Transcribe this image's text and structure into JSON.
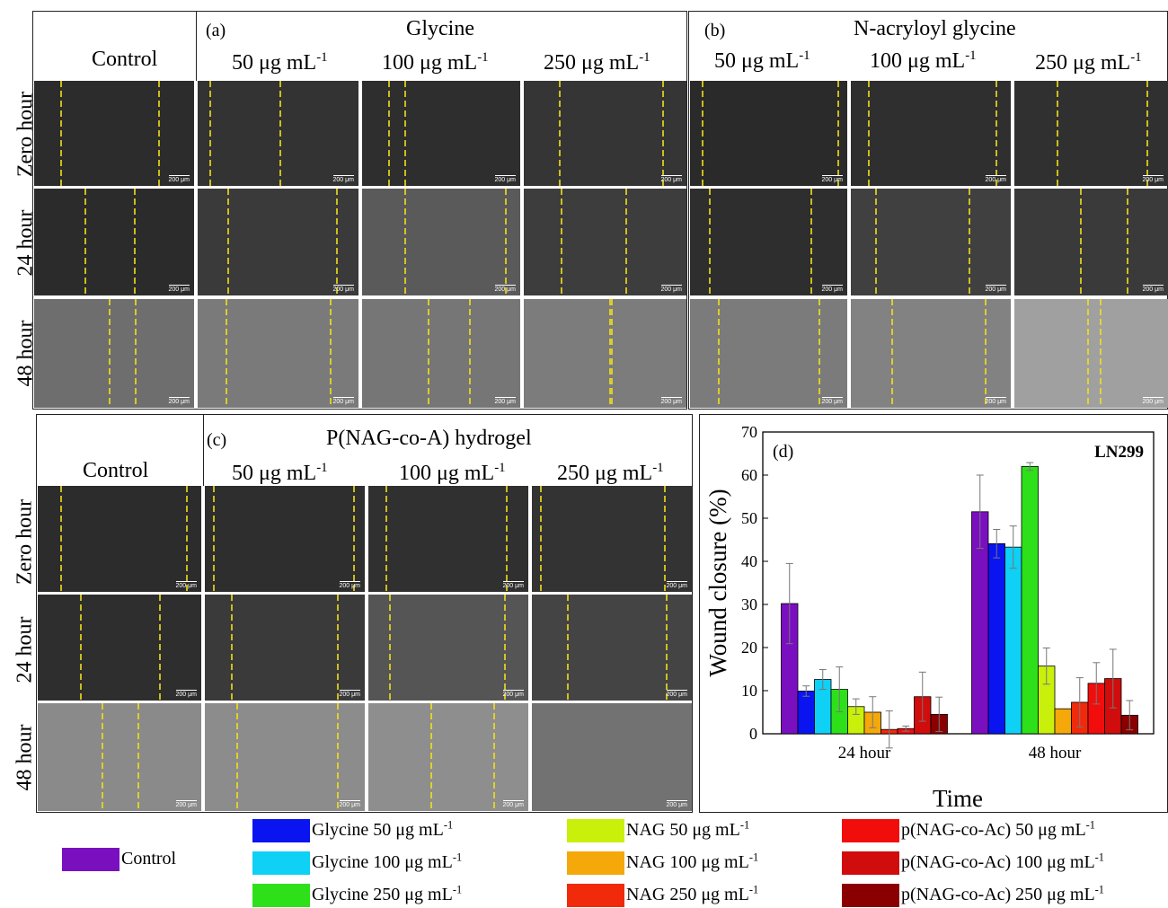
{
  "panel_a": {
    "tag": "(a)",
    "title": "Glycine",
    "control_label": "Control",
    "columns": [
      "50 μg mL",
      "100 μg mL",
      "250 μg mL"
    ],
    "unit_exponent": "-1"
  },
  "panel_b": {
    "tag": "(b)",
    "title": "N-acryloyl glycine",
    "columns": [
      "50 μg mL",
      "100 μg mL",
      "250 μg mL"
    ],
    "unit_exponent": "-1"
  },
  "panel_c": {
    "tag": "(c)",
    "title": "P(NAG-co-A) hydrogel",
    "control_label": "Control",
    "columns": [
      "50 μg mL",
      "100 μg mL",
      "250 μg mL"
    ],
    "unit_exponent": "-1"
  },
  "rows": [
    "Zero  hour",
    "24 hour",
    "48 hour"
  ],
  "scale_bar": "200 μm",
  "chart_data": {
    "type": "bar",
    "panel_tag": "(d)",
    "annotation": "LN299",
    "xlabel": "Time",
    "ylabel": "Wound closure (%)",
    "ylim": [
      0,
      70
    ],
    "yticks": [
      0,
      10,
      20,
      30,
      40,
      50,
      60,
      70
    ],
    "categories": [
      "24 hour",
      "48 hour"
    ],
    "series": [
      {
        "name": "Control",
        "color": "#7a0fc0",
        "values": [
          30.2,
          51.5
        ],
        "errors": [
          9.3,
          8.5
        ]
      },
      {
        "name": "Glycine 50 μg mL",
        "color": "#0a14f0",
        "values": [
          9.9,
          44.1
        ],
        "errors": [
          1.2,
          3.3
        ]
      },
      {
        "name": "Glycine 100 μg mL",
        "color": "#0fd0f5",
        "values": [
          12.6,
          43.3
        ],
        "errors": [
          2.3,
          4.9
        ]
      },
      {
        "name": "Glycine  250 μg mL",
        "color": "#2ee01a",
        "values": [
          10.3,
          62.0
        ],
        "errors": [
          5.2,
          0.9
        ]
      },
      {
        "name": "NAG 50 μg mL",
        "color": "#c8f00a",
        "values": [
          6.3,
          15.7
        ],
        "errors": [
          1.8,
          4.2
        ]
      },
      {
        "name": "NAG 100 μg mL",
        "color": "#f5a80a",
        "values": [
          5.0,
          5.8
        ],
        "errors": [
          3.6,
          0
        ]
      },
      {
        "name": "NAG 250 μg mL",
        "color": "#f02a0a",
        "values": [
          1.0,
          7.3
        ],
        "errors": [
          4.3,
          5.7
        ]
      },
      {
        "name": "p(NAG-co-Ac) 50 μg mL",
        "color": "#f20d0d",
        "values": [
          1.2,
          11.7
        ],
        "errors": [
          0.6,
          4.8
        ]
      },
      {
        "name": "p(NAG-co-Ac) 100 μg mL",
        "color": "#d00c0c",
        "values": [
          8.6,
          12.8
        ],
        "errors": [
          5.7,
          6.8
        ]
      },
      {
        "name": "p(NAG-co-Ac) 250 μg mL",
        "color": "#8a0000",
        "values": [
          4.5,
          4.3
        ],
        "errors": [
          4.0,
          3.4
        ]
      }
    ],
    "legend_exponent": "-1"
  }
}
